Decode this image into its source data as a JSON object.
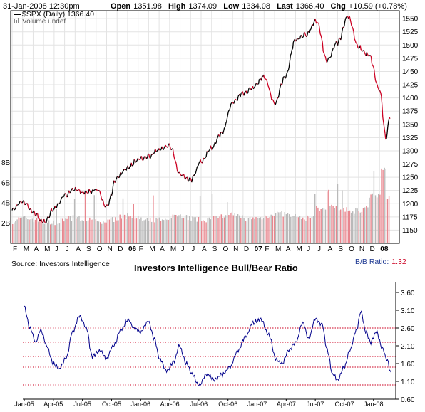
{
  "header": {
    "datetime": "31-Jan-2008 12:30pm",
    "open_label": "Open",
    "open": "1351.98",
    "high_label": "High",
    "high": "1374.09",
    "low_label": "Low",
    "low": "1334.08",
    "last_label": "Last",
    "last": "1366.40",
    "chg_label": "Chg",
    "chg": "+10.59 (+0.78%)"
  },
  "colors": {
    "price_line": "#000000",
    "down_color": "#cc0022",
    "volume_bar": "#cc0022",
    "ratio_line": "#00008b",
    "ref_line": "#cc0022"
  },
  "chart_data": [
    {
      "type": "line",
      "series_label": "$SPX (Daily) 1366.40",
      "volume_label": "Volume undef",
      "ylim": [
        1125,
        1565
      ],
      "y_ticks": [
        1150,
        1175,
        1200,
        1225,
        1250,
        1275,
        1300,
        1325,
        1350,
        1375,
        1400,
        1425,
        1450,
        1475,
        1500,
        1525,
        1550
      ],
      "volume_ticks": [
        "2B",
        "4B",
        "6B",
        "8B"
      ],
      "volume_tick_values": [
        2,
        4,
        6,
        8
      ],
      "x_labels": [
        "F",
        "M",
        "A",
        "M",
        "J",
        "J",
        "A",
        "S",
        "O",
        "N",
        "D",
        "06",
        "F",
        "M",
        "A",
        "M",
        "J",
        "J",
        "A",
        "S",
        "O",
        "N",
        "D",
        "07",
        "F",
        "M",
        "A",
        "M",
        "J",
        "J",
        "A",
        "S",
        "O",
        "N",
        "D",
        "08"
      ],
      "price_anchors": [
        {
          "t": 0,
          "v": 1190
        },
        {
          "t": 1,
          "v": 1205
        },
        {
          "t": 2,
          "v": 1185
        },
        {
          "t": 3,
          "v": 1165
        },
        {
          "t": 4,
          "v": 1190
        },
        {
          "t": 5,
          "v": 1215
        },
        {
          "t": 6,
          "v": 1228
        },
        {
          "t": 7,
          "v": 1220
        },
        {
          "t": 8,
          "v": 1228
        },
        {
          "t": 9,
          "v": 1195
        },
        {
          "t": 10,
          "v": 1250
        },
        {
          "t": 11,
          "v": 1268
        },
        {
          "t": 12,
          "v": 1283
        },
        {
          "t": 13,
          "v": 1290
        },
        {
          "t": 14,
          "v": 1302
        },
        {
          "t": 15,
          "v": 1310
        },
        {
          "t": 16,
          "v": 1255
        },
        {
          "t": 17,
          "v": 1245
        },
        {
          "t": 18,
          "v": 1280
        },
        {
          "t": 19,
          "v": 1305
        },
        {
          "t": 20,
          "v": 1335
        },
        {
          "t": 21,
          "v": 1390
        },
        {
          "t": 22,
          "v": 1410
        },
        {
          "t": 23,
          "v": 1420
        },
        {
          "t": 24,
          "v": 1440
        },
        {
          "t": 25,
          "v": 1390
        },
        {
          "t": 26,
          "v": 1440
        },
        {
          "t": 27,
          "v": 1510
        },
        {
          "t": 28,
          "v": 1520
        },
        {
          "t": 29,
          "v": 1545
        },
        {
          "t": 30,
          "v": 1470
        },
        {
          "t": 31,
          "v": 1505
        },
        {
          "t": 32,
          "v": 1555
        },
        {
          "t": 33,
          "v": 1495
        },
        {
          "t": 34,
          "v": 1480
        },
        {
          "t": 35,
          "v": 1415
        },
        {
          "t": 35.6,
          "v": 1325
        },
        {
          "t": 36,
          "v": 1366
        }
      ]
    },
    {
      "type": "line",
      "title": "Investors Intelligence Bull/Bear Ratio",
      "source": "Source: Investors Intelligence",
      "ratio_label": "B/B Ratio:",
      "ratio_value": "1.32",
      "ylim": [
        0.6,
        3.9
      ],
      "y_ticks": [
        "3.60",
        "3.10",
        "2.60",
        "2.10",
        "1.60",
        "1.10",
        "0.60"
      ],
      "y_tick_values": [
        3.6,
        3.1,
        2.6,
        2.1,
        1.6,
        1.1,
        0.6
      ],
      "reference_lines": [
        2.6,
        2.2,
        1.8,
        1.5,
        1.0
      ],
      "x_labels": [
        "Jan-05",
        "Apr-05",
        "Jul-05",
        "Oct-05",
        "Jan-06",
        "Apr-06",
        "Jul-06",
        "Oct-06",
        "Jan-07",
        "Apr-07",
        "Jul-07",
        "Oct-07",
        "Jan-08"
      ],
      "x_label_month_index": [
        0,
        3,
        6,
        9,
        12,
        15,
        18,
        21,
        24,
        27,
        30,
        33,
        36
      ],
      "ratio_anchors": [
        {
          "t": 0,
          "v": 3.2
        },
        {
          "t": 0.6,
          "v": 2.6
        },
        {
          "t": 1.2,
          "v": 2.2
        },
        {
          "t": 1.7,
          "v": 2.55
        },
        {
          "t": 2.3,
          "v": 2.1
        },
        {
          "t": 3.0,
          "v": 1.6
        },
        {
          "t": 3.6,
          "v": 1.45
        },
        {
          "t": 4.3,
          "v": 1.75
        },
        {
          "t": 5.0,
          "v": 2.5
        },
        {
          "t": 5.7,
          "v": 2.95
        },
        {
          "t": 6.4,
          "v": 2.6
        },
        {
          "t": 7.0,
          "v": 1.8
        },
        {
          "t": 7.8,
          "v": 1.95
        },
        {
          "t": 8.5,
          "v": 1.75
        },
        {
          "t": 9.2,
          "v": 2.1
        },
        {
          "t": 10.0,
          "v": 2.55
        },
        {
          "t": 10.7,
          "v": 2.85
        },
        {
          "t": 11.3,
          "v": 2.6
        },
        {
          "t": 12.0,
          "v": 2.5
        },
        {
          "t": 12.8,
          "v": 2.8
        },
        {
          "t": 13.4,
          "v": 2.3
        },
        {
          "t": 14.0,
          "v": 1.7
        },
        {
          "t": 14.7,
          "v": 1.4
        },
        {
          "t": 15.4,
          "v": 1.65
        },
        {
          "t": 16.0,
          "v": 2.1
        },
        {
          "t": 16.7,
          "v": 1.6
        },
        {
          "t": 17.3,
          "v": 1.3
        },
        {
          "t": 18.0,
          "v": 1.0
        },
        {
          "t": 18.8,
          "v": 1.3
        },
        {
          "t": 19.6,
          "v": 1.15
        },
        {
          "t": 20.4,
          "v": 1.3
        },
        {
          "t": 21.2,
          "v": 1.5
        },
        {
          "t": 22.0,
          "v": 1.95
        },
        {
          "t": 22.8,
          "v": 2.35
        },
        {
          "t": 23.6,
          "v": 2.75
        },
        {
          "t": 24.4,
          "v": 2.85
        },
        {
          "t": 25.2,
          "v": 2.4
        },
        {
          "t": 26.0,
          "v": 1.7
        },
        {
          "t": 26.6,
          "v": 1.6
        },
        {
          "t": 27.2,
          "v": 1.95
        },
        {
          "t": 28.0,
          "v": 2.2
        },
        {
          "t": 28.7,
          "v": 2.75
        },
        {
          "t": 29.3,
          "v": 2.3
        },
        {
          "t": 30.0,
          "v": 2.85
        },
        {
          "t": 30.7,
          "v": 2.7
        },
        {
          "t": 31.2,
          "v": 2.0
        },
        {
          "t": 31.8,
          "v": 1.3
        },
        {
          "t": 32.3,
          "v": 1.15
        },
        {
          "t": 33.0,
          "v": 1.5
        },
        {
          "t": 33.6,
          "v": 2.0
        },
        {
          "t": 34.2,
          "v": 2.5
        },
        {
          "t": 34.7,
          "v": 3.05
        },
        {
          "t": 35.2,
          "v": 2.5
        },
        {
          "t": 35.7,
          "v": 2.2
        },
        {
          "t": 36.3,
          "v": 2.5
        },
        {
          "t": 36.9,
          "v": 2.05
        },
        {
          "t": 37.4,
          "v": 1.7
        },
        {
          "t": 37.8,
          "v": 1.32
        }
      ]
    }
  ]
}
